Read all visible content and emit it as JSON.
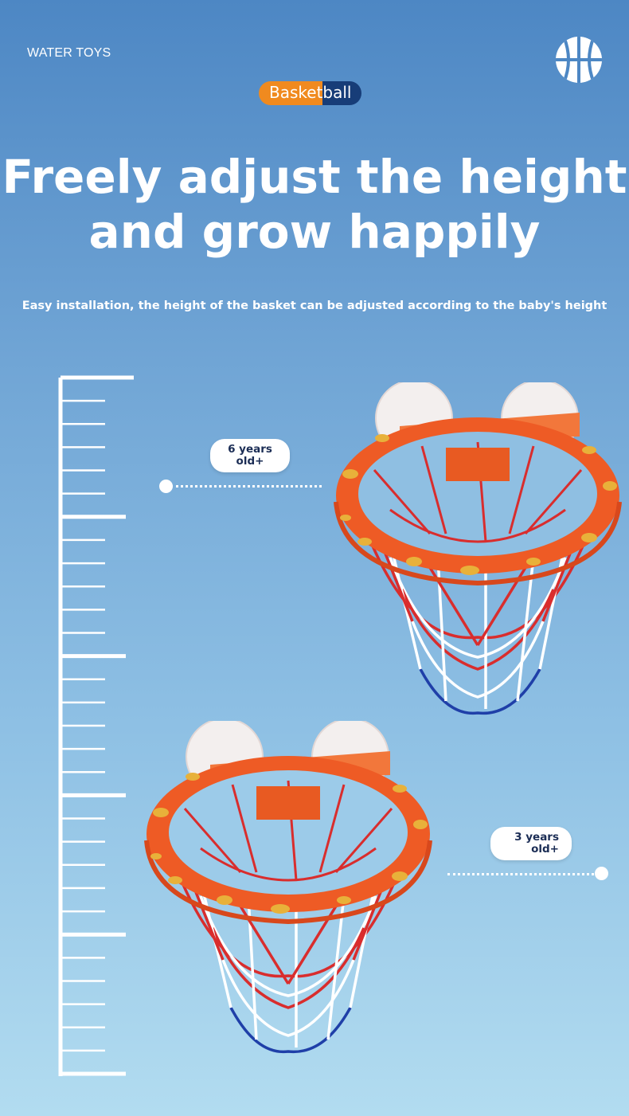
{
  "header": {
    "brand": "WATER TOYS",
    "badge_part1": "Basket",
    "badge_part2": "ball",
    "title_line1": "Freely adjust the height",
    "title_line2": "and grow happily",
    "subtitle": "Easy installation, the height of the basket can be adjusted according to the baby's height"
  },
  "icons": {
    "logo": "basketball-icon"
  },
  "markers": [
    {
      "line1": "6 years",
      "line2": "old+"
    },
    {
      "line1": "3 years",
      "line2": "old+"
    }
  ],
  "colors": {
    "badge_orange": "#f08a1f",
    "badge_navy": "#173d78",
    "rim_orange": "#ee5b25",
    "net_red": "#d92d2d",
    "net_blue": "#1f3fa8"
  }
}
